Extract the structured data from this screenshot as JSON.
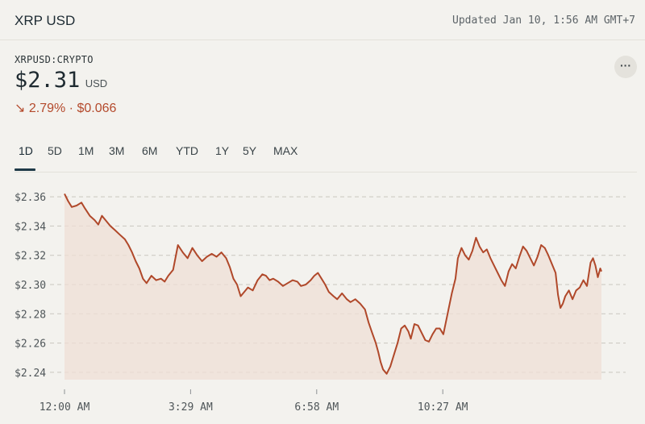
{
  "header": {
    "title": "XRP USD",
    "updated": "Updated Jan 10, 1:56 AM GMT+7"
  },
  "quote": {
    "symbol": "XRPUSD:CRYPTO",
    "price": "$2.31",
    "currency": "USD",
    "change_arrow": "↘",
    "change_text": "2.79% · $0.066",
    "direction": "down"
  },
  "tabs": [
    {
      "label": "1D",
      "active": true
    },
    {
      "label": "5D",
      "active": false
    },
    {
      "label": "1M",
      "active": false
    },
    {
      "label": "3M",
      "active": false
    },
    {
      "label": "6M",
      "active": false
    },
    {
      "label": "YTD",
      "active": false
    },
    {
      "label": "1Y",
      "active": false
    },
    {
      "label": "5Y",
      "active": false
    },
    {
      "label": "MAX",
      "active": false
    }
  ],
  "colors": {
    "line": "#b0482a",
    "fill": "#efdfd6",
    "grid": "#c9c6bf",
    "accent": "#1f3a48"
  },
  "icons": {
    "more": "more-horizontal-icon",
    "change": "arrow-down-right-icon"
  },
  "chart_data": {
    "type": "area",
    "x_ticks": [
      "12:00 AM",
      "3:29 AM",
      "6:58 AM",
      "10:27 AM"
    ],
    "x_tick_minutes": [
      0,
      209,
      418,
      627
    ],
    "y_ticks": [
      "$2.36",
      "$2.34",
      "$2.32",
      "$2.30",
      "$2.28",
      "$2.26",
      "$2.24"
    ],
    "y_tick_values": [
      2.36,
      2.34,
      2.32,
      2.3,
      2.28,
      2.26,
      2.24
    ],
    "ylim": [
      2.235,
      2.365
    ],
    "xlim": [
      0,
      890
    ],
    "reference_value": 2.3,
    "grid": "horizontal dashed",
    "points": [
      [
        0,
        2.362
      ],
      [
        6,
        2.357
      ],
      [
        12,
        2.353
      ],
      [
        20,
        2.354
      ],
      [
        28,
        2.356
      ],
      [
        34,
        2.352
      ],
      [
        42,
        2.347
      ],
      [
        50,
        2.344
      ],
      [
        56,
        2.341
      ],
      [
        62,
        2.347
      ],
      [
        68,
        2.344
      ],
      [
        76,
        2.34
      ],
      [
        84,
        2.337
      ],
      [
        92,
        2.334
      ],
      [
        100,
        2.331
      ],
      [
        106,
        2.327
      ],
      [
        112,
        2.322
      ],
      [
        118,
        2.316
      ],
      [
        124,
        2.311
      ],
      [
        130,
        2.304
      ],
      [
        136,
        2.301
      ],
      [
        144,
        2.306
      ],
      [
        152,
        2.303
      ],
      [
        160,
        2.304
      ],
      [
        166,
        2.302
      ],
      [
        172,
        2.306
      ],
      [
        180,
        2.31
      ],
      [
        188,
        2.327
      ],
      [
        196,
        2.322
      ],
      [
        204,
        2.318
      ],
      [
        212,
        2.325
      ],
      [
        220,
        2.32
      ],
      [
        228,
        2.316
      ],
      [
        236,
        2.319
      ],
      [
        244,
        2.321
      ],
      [
        252,
        2.319
      ],
      [
        260,
        2.322
      ],
      [
        268,
        2.318
      ],
      [
        274,
        2.312
      ],
      [
        280,
        2.304
      ],
      [
        286,
        2.3
      ],
      [
        292,
        2.292
      ],
      [
        298,
        2.295
      ],
      [
        304,
        2.298
      ],
      [
        312,
        2.296
      ],
      [
        320,
        2.303
      ],
      [
        328,
        2.307
      ],
      [
        334,
        2.306
      ],
      [
        340,
        2.303
      ],
      [
        346,
        2.304
      ],
      [
        354,
        2.302
      ],
      [
        362,
        2.299
      ],
      [
        370,
        2.301
      ],
      [
        378,
        2.303
      ],
      [
        386,
        2.302
      ],
      [
        392,
        2.299
      ],
      [
        400,
        2.3
      ],
      [
        408,
        2.303
      ],
      [
        414,
        2.306
      ],
      [
        420,
        2.308
      ],
      [
        426,
        2.304
      ],
      [
        432,
        2.3
      ],
      [
        438,
        2.295
      ],
      [
        446,
        2.292
      ],
      [
        452,
        2.29
      ],
      [
        460,
        2.294
      ],
      [
        468,
        2.29
      ],
      [
        474,
        2.288
      ],
      [
        482,
        2.29
      ],
      [
        490,
        2.287
      ],
      [
        498,
        2.283
      ],
      [
        504,
        2.274
      ],
      [
        510,
        2.267
      ],
      [
        516,
        2.26
      ],
      [
        520,
        2.254
      ],
      [
        524,
        2.247
      ],
      [
        528,
        2.242
      ],
      [
        534,
        2.239
      ],
      [
        540,
        2.244
      ],
      [
        546,
        2.252
      ],
      [
        552,
        2.26
      ],
      [
        558,
        2.27
      ],
      [
        564,
        2.272
      ],
      [
        570,
        2.268
      ],
      [
        574,
        2.263
      ],
      [
        580,
        2.273
      ],
      [
        586,
        2.272
      ],
      [
        592,
        2.267
      ],
      [
        598,
        2.262
      ],
      [
        604,
        2.261
      ],
      [
        610,
        2.266
      ],
      [
        616,
        2.27
      ],
      [
        622,
        2.27
      ],
      [
        628,
        2.266
      ],
      [
        636,
        2.282
      ],
      [
        642,
        2.294
      ],
      [
        648,
        2.304
      ],
      [
        652,
        2.318
      ],
      [
        658,
        2.325
      ],
      [
        664,
        2.32
      ],
      [
        670,
        2.317
      ],
      [
        676,
        2.323
      ],
      [
        682,
        2.332
      ],
      [
        688,
        2.326
      ],
      [
        694,
        2.322
      ],
      [
        700,
        2.324
      ],
      [
        706,
        2.318
      ],
      [
        712,
        2.313
      ],
      [
        718,
        2.308
      ],
      [
        724,
        2.303
      ],
      [
        730,
        2.299
      ],
      [
        736,
        2.309
      ],
      [
        742,
        2.314
      ],
      [
        748,
        2.311
      ],
      [
        754,
        2.319
      ],
      [
        760,
        2.326
      ],
      [
        766,
        2.323
      ],
      [
        772,
        2.318
      ],
      [
        778,
        2.313
      ],
      [
        784,
        2.319
      ],
      [
        790,
        2.327
      ],
      [
        796,
        2.325
      ],
      [
        802,
        2.32
      ],
      [
        808,
        2.314
      ],
      [
        814,
        2.308
      ],
      [
        818,
        2.293
      ],
      [
        822,
        2.284
      ],
      [
        826,
        2.287
      ],
      [
        830,
        2.292
      ],
      [
        836,
        2.296
      ],
      [
        842,
        2.29
      ],
      [
        848,
        2.296
      ],
      [
        854,
        2.298
      ],
      [
        860,
        2.303
      ],
      [
        866,
        2.299
      ],
      [
        872,
        2.315
      ],
      [
        876,
        2.318
      ],
      [
        880,
        2.313
      ],
      [
        884,
        2.305
      ],
      [
        888,
        2.311
      ],
      [
        890,
        2.309
      ]
    ]
  }
}
